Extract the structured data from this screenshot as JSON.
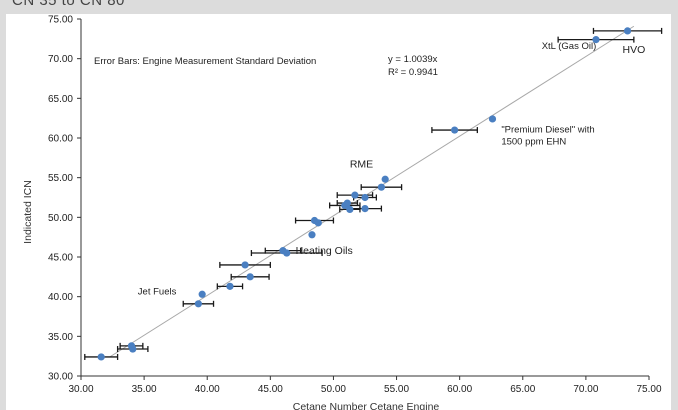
{
  "header_fragment": "CN 35 to CN 80",
  "chart_data": {
    "type": "scatter",
    "title": "",
    "xlabel": "Cetane Number Cetane Engine",
    "ylabel": "Indicated ICN",
    "xlim": [
      30,
      75
    ],
    "ylim": [
      30,
      75
    ],
    "x_ticks": [
      "30.00",
      "35.00",
      "40.00",
      "45.00",
      "50.00",
      "55.00",
      "60.00",
      "65.00",
      "70.00",
      "75.00"
    ],
    "y_ticks": [
      "30.00",
      "35.00",
      "40.00",
      "45.00",
      "50.00",
      "55.00",
      "60.00",
      "65.00",
      "70.00",
      "75.00"
    ],
    "grid": false,
    "marker_color": "#4a7fc1",
    "trendline": {
      "slope": 1.0039,
      "color": "#a8a8a8"
    },
    "equation_text": "y = 1.0039x",
    "r2_text": "R² = 0.9941",
    "error_bar_note": "Error Bars: Engine Measurement Standard Deviation",
    "points": [
      {
        "x": 31.6,
        "y": 32.4,
        "err": 1.3
      },
      {
        "x": 34.0,
        "y": 33.8,
        "err": 0.9
      },
      {
        "x": 34.1,
        "y": 33.4,
        "err": 1.2
      },
      {
        "x": 39.3,
        "y": 39.1,
        "err": 1.2
      },
      {
        "x": 39.6,
        "y": 40.3,
        "err": 0
      },
      {
        "x": 41.8,
        "y": 41.3,
        "err": 1.0
      },
      {
        "x": 43.0,
        "y": 44.0,
        "err": 2.0
      },
      {
        "x": 43.4,
        "y": 42.5,
        "err": 1.5
      },
      {
        "x": 46.0,
        "y": 45.8,
        "err": 1.4
      },
      {
        "x": 46.3,
        "y": 45.5,
        "err": 2.8
      },
      {
        "x": 48.3,
        "y": 47.8,
        "err": 0
      },
      {
        "x": 48.5,
        "y": 49.6,
        "err": 1.5
      },
      {
        "x": 48.8,
        "y": 49.3,
        "err": 0
      },
      {
        "x": 50.9,
        "y": 51.5,
        "err": 1.2
      },
      {
        "x": 51.1,
        "y": 51.8,
        "err": 0.8
      },
      {
        "x": 51.3,
        "y": 51.0,
        "err": 0.8
      },
      {
        "x": 51.7,
        "y": 52.8,
        "err": 1.4
      },
      {
        "x": 52.5,
        "y": 52.5,
        "err": 0.9
      },
      {
        "x": 52.5,
        "y": 51.1,
        "err": 1.3
      },
      {
        "x": 53.8,
        "y": 53.8,
        "err": 1.6
      },
      {
        "x": 54.1,
        "y": 54.8,
        "err": 0
      },
      {
        "x": 59.6,
        "y": 61.0,
        "err": 1.8
      },
      {
        "x": 62.6,
        "y": 62.4,
        "err": 0
      },
      {
        "x": 70.8,
        "y": 72.4,
        "err": 3.0
      },
      {
        "x": 73.3,
        "y": 73.5,
        "err": 2.7
      }
    ],
    "annotations": [
      {
        "text": "Jet Fuels",
        "x": 34.5,
        "y": 40.3,
        "size": "small"
      },
      {
        "text": "Heating Oils",
        "x": 47.0,
        "y": 45.4,
        "size": "big"
      },
      {
        "text": "RME",
        "x": 51.3,
        "y": 56.3,
        "size": "big"
      },
      {
        "text": "\"Premium Diesel\" with",
        "x": 63.3,
        "y": 60.7,
        "size": "small"
      },
      {
        "text": "1500 ppm EHN",
        "x": 63.3,
        "y": 59.2,
        "size": "small"
      },
      {
        "text": "XtL (Gas Oil)",
        "x": 66.5,
        "y": 71.2,
        "size": "small"
      },
      {
        "text": "HVO",
        "x": 72.9,
        "y": 70.7,
        "size": "big"
      }
    ]
  }
}
